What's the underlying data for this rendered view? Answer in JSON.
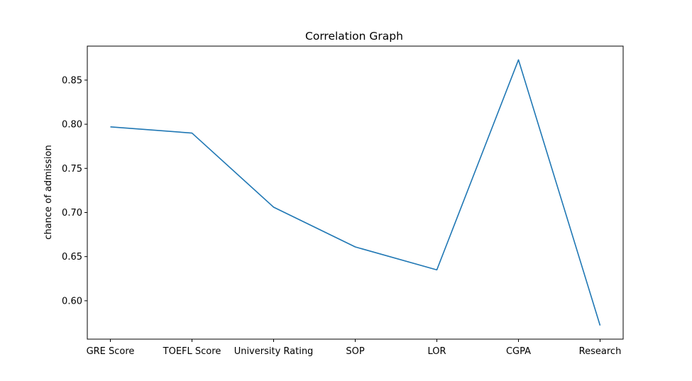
{
  "chart_data": {
    "type": "line",
    "title": "Correlation Graph",
    "xlabel": "",
    "ylabel": "chance of admission",
    "categories": [
      "GRE Score",
      "TOEFL Score",
      "University Rating",
      "SOP",
      "LOR",
      "CGPA",
      "Research"
    ],
    "series": [
      {
        "values": [
          0.797,
          0.79,
          0.706,
          0.661,
          0.635,
          0.873,
          0.572
        ],
        "color": "#1f77b4"
      }
    ],
    "yticks": [
      0.6,
      0.65,
      0.7,
      0.75,
      0.8,
      0.85
    ],
    "ytick_labels": [
      "0.60",
      "0.65",
      "0.70",
      "0.75",
      "0.80",
      "0.85"
    ],
    "ylim": [
      0.5565,
      0.8885
    ],
    "grid": false,
    "legend": "none"
  }
}
